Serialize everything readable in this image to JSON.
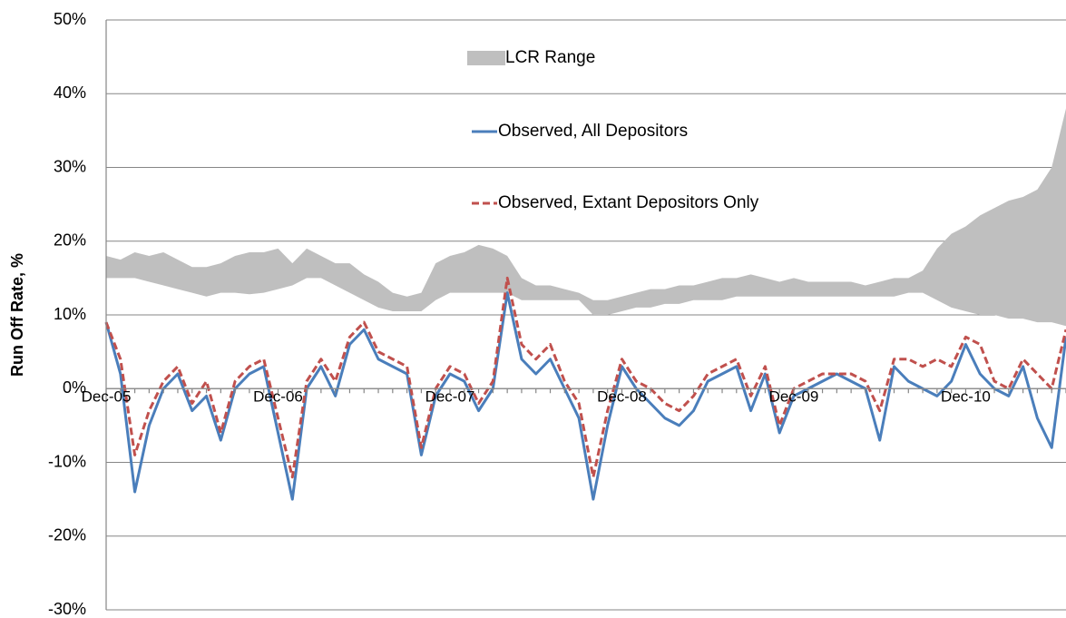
{
  "chart_data": {
    "type": "line",
    "y_label": "Run Off Rate, %",
    "categories": [
      "Dec-05",
      null,
      null,
      null,
      null,
      null,
      null,
      null,
      null,
      null,
      null,
      null,
      "Dec-06",
      null,
      null,
      null,
      null,
      null,
      null,
      null,
      null,
      null,
      null,
      null,
      "Dec-07",
      null,
      null,
      null,
      null,
      null,
      null,
      null,
      null,
      null,
      null,
      null,
      "Dec-08",
      null,
      null,
      null,
      null,
      null,
      null,
      null,
      null,
      null,
      null,
      null,
      "Dec-09",
      null,
      null,
      null,
      null,
      null,
      null,
      null,
      null,
      null,
      null,
      null,
      "Dec-10",
      null,
      null,
      null,
      null,
      null,
      null,
      null
    ],
    "series": [
      {
        "name": "LCR Range",
        "kind": "range",
        "color": "#bfbfbf",
        "values": [
          18,
          17.5,
          18.5,
          18,
          18.5,
          17.5,
          16.5,
          16.5,
          17,
          18,
          18.5,
          18.5,
          19,
          17,
          19,
          18,
          17,
          17,
          15.5,
          14.5,
          13,
          12.5,
          13,
          17,
          18,
          18.5,
          19.5,
          19,
          18,
          15,
          14,
          14,
          13.5,
          13,
          12,
          12,
          12.5,
          13,
          13.5,
          13.5,
          14,
          14,
          14.5,
          15,
          15,
          15.5,
          15,
          14.5,
          15,
          14.5,
          14.5,
          14.5,
          14.5,
          14,
          14.5,
          15,
          15,
          16,
          19,
          21,
          22,
          23.5,
          24.5,
          25.5,
          26,
          27,
          30,
          38
        ],
        "low": [
          15,
          15,
          15,
          14.5,
          14,
          13.5,
          13,
          12.5,
          13,
          13,
          12.8,
          13,
          13.5,
          14,
          15,
          15,
          14,
          13,
          12,
          11,
          10.5,
          10.5,
          10.5,
          12,
          13,
          13,
          13,
          13,
          13,
          12,
          12,
          12,
          12,
          12,
          10,
          10,
          10.5,
          11,
          11,
          11.5,
          11.5,
          12,
          12,
          12,
          12.5,
          12.5,
          12.5,
          12.5,
          12.5,
          12.5,
          12.5,
          12.5,
          12.5,
          12.5,
          12.5,
          12.5,
          13,
          13,
          12,
          11,
          10.5,
          10,
          10,
          9.5,
          9.5,
          9,
          9,
          8.5
        ]
      },
      {
        "name": "Observed, All Depositors",
        "color": "#4a7ebb",
        "dash": false,
        "values": [
          9,
          2,
          -14,
          -5,
          0,
          2,
          -3,
          -1,
          -7,
          0,
          2,
          3,
          -6,
          -15,
          0,
          3,
          -1,
          6,
          8,
          4,
          3,
          2,
          -9,
          -1,
          2,
          1,
          -3,
          0,
          13,
          4,
          2,
          4,
          0,
          -4,
          -15,
          -5,
          3,
          0,
          -2,
          -4,
          -5,
          -3,
          1,
          2,
          3,
          -3,
          2,
          -6,
          -1,
          0,
          1,
          2,
          1,
          0,
          -7,
          3,
          1,
          0,
          -1,
          1,
          6,
          2,
          0,
          -1,
          3,
          -4,
          -8,
          7
        ]
      },
      {
        "name": "Observed, Extant Depositors Only",
        "color": "#c0504d",
        "dash": true,
        "values": [
          9,
          4,
          -9,
          -3,
          1,
          3,
          -2,
          1,
          -6,
          1,
          3,
          4,
          -4,
          -12,
          1,
          4,
          1,
          7,
          9,
          5,
          4,
          3,
          -8,
          0,
          3,
          2,
          -2,
          1,
          15,
          6,
          4,
          6,
          1,
          -2,
          -12,
          -3,
          4,
          1,
          0,
          -2,
          -3,
          -1,
          2,
          3,
          4,
          -1,
          3,
          -5,
          0,
          1,
          2,
          2,
          2,
          1,
          -3,
          4,
          4,
          3,
          4,
          3,
          7,
          6,
          1,
          0,
          4,
          2,
          0,
          8
        ]
      }
    ],
    "ylim": [
      -30,
      50
    ],
    "yticks": [
      {
        "value": -30,
        "label": "-30%"
      },
      {
        "value": -20,
        "label": "-20%"
      },
      {
        "value": -10,
        "label": "-10%"
      },
      {
        "value": 0,
        "label": "0%"
      },
      {
        "value": 10,
        "label": "10%"
      },
      {
        "value": 20,
        "label": "20%"
      },
      {
        "value": 30,
        "label": "30%"
      },
      {
        "value": 40,
        "label": "40%"
      },
      {
        "value": 50,
        "label": "50%"
      }
    ],
    "grid": true
  }
}
